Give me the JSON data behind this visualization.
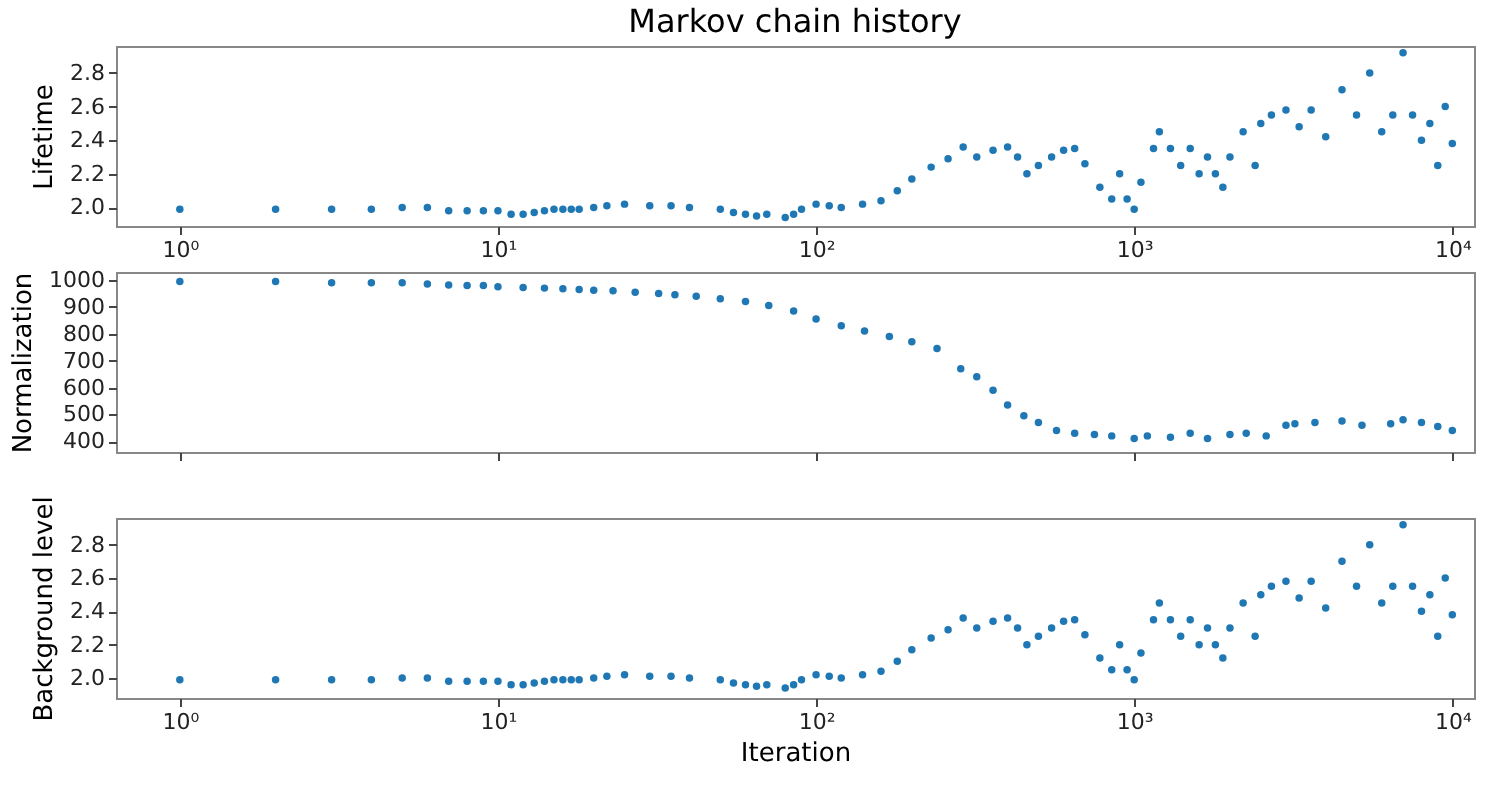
{
  "chart_data": [
    {
      "type": "scatter",
      "title": "Markov chain history",
      "ylabel": "Lifetime",
      "color": "#1f77b4",
      "marker": "circle",
      "grid": false,
      "log": "x",
      "xlim": [
        0.63,
        11700
      ],
      "xticks": [
        {
          "value": 1,
          "label": "10⁰"
        },
        {
          "value": 10,
          "label": "10¹"
        },
        {
          "value": 100,
          "label": "10²"
        },
        {
          "value": 1000,
          "label": "10³"
        },
        {
          "value": 10000,
          "label": "10⁴"
        }
      ],
      "ylim": [
        1.89,
        2.96
      ],
      "yticks": [
        {
          "value": 2,
          "label": "2.0"
        },
        2.2,
        2.4,
        2.6,
        2.8
      ],
      "x": [
        1,
        2,
        3,
        4,
        5,
        6,
        7,
        8,
        9,
        10,
        11,
        12,
        13,
        14,
        15,
        16,
        17,
        18,
        20,
        22,
        25,
        30,
        35,
        40,
        50,
        55,
        60,
        65,
        70,
        80,
        85,
        90,
        100,
        110,
        120,
        140,
        160,
        180,
        200,
        230,
        260,
        290,
        320,
        360,
        400,
        430,
        460,
        500,
        550,
        600,
        650,
        700,
        780,
        850,
        900,
        950,
        1000,
        1050,
        1150,
        1200,
        1300,
        1400,
        1500,
        1600,
        1700,
        1800,
        1900,
        2000,
        2200,
        2400,
        2500,
        2700,
        3000,
        3300,
        3600,
        4000,
        4500,
        5000,
        5500,
        6000,
        6500,
        7000,
        7500,
        8000,
        8500,
        9000,
        9500,
        10000
      ],
      "values": [
        1.99,
        1.99,
        1.99,
        1.99,
        2.0,
        2.0,
        1.98,
        1.98,
        1.98,
        1.98,
        1.96,
        1.96,
        1.97,
        1.98,
        1.99,
        1.99,
        1.99,
        1.99,
        2.0,
        2.01,
        2.02,
        2.01,
        2.01,
        2.0,
        1.99,
        1.97,
        1.96,
        1.95,
        1.96,
        1.94,
        1.96,
        1.99,
        2.02,
        2.01,
        2.0,
        2.02,
        2.04,
        2.1,
        2.17,
        2.24,
        2.29,
        2.36,
        2.3,
        2.34,
        2.36,
        2.3,
        2.2,
        2.25,
        2.3,
        2.34,
        2.35,
        2.26,
        2.12,
        2.05,
        2.2,
        2.05,
        1.99,
        2.15,
        2.35,
        2.45,
        2.35,
        2.25,
        2.35,
        2.2,
        2.3,
        2.2,
        2.12,
        2.3,
        2.45,
        2.25,
        2.5,
        2.55,
        2.58,
        2.48,
        2.58,
        2.42,
        2.7,
        2.55,
        2.8,
        2.45,
        2.55,
        2.92,
        2.55,
        2.4,
        2.5,
        2.25,
        2.6,
        2.38
      ]
    },
    {
      "type": "scatter",
      "ylabel": "Normalization",
      "color": "#1f77b4",
      "marker": "circle",
      "grid": false,
      "log": "x",
      "tick_labels": "y",
      "xlim": [
        0.63,
        11700
      ],
      "xticks": [
        1,
        10,
        100,
        1000,
        10000
      ],
      "ylim": [
        360,
        1030
      ],
      "yticks": [
        400,
        500,
        600,
        700,
        800,
        900,
        1000
      ],
      "x": [
        1,
        2,
        3,
        4,
        5,
        6,
        7,
        8,
        9,
        10,
        12,
        14,
        16,
        18,
        20,
        23,
        27,
        32,
        36,
        42,
        50,
        60,
        71,
        85,
        100,
        120,
        142,
        170,
        200,
        240,
        285,
        320,
        360,
        400,
        450,
        500,
        570,
        650,
        750,
        850,
        1000,
        1100,
        1300,
        1500,
        1700,
        2000,
        2250,
        2600,
        3000,
        3200,
        3700,
        4500,
        5200,
        6400,
        7000,
        8000,
        9000,
        10000
      ],
      "values": [
        995,
        995,
        990,
        990,
        990,
        985,
        982,
        980,
        980,
        975,
        972,
        970,
        968,
        965,
        962,
        960,
        955,
        950,
        945,
        940,
        930,
        920,
        905,
        885,
        855,
        830,
        810,
        790,
        770,
        745,
        670,
        640,
        590,
        535,
        495,
        470,
        440,
        430,
        425,
        420,
        410,
        420,
        415,
        430,
        410,
        425,
        430,
        420,
        460,
        465,
        470,
        475,
        460,
        465,
        480,
        470,
        455,
        440
      ]
    },
    {
      "type": "scatter",
      "ylabel": "Background level",
      "xlabel": "Iteration",
      "color": "#1f77b4",
      "marker": "circle",
      "grid": false,
      "log": "x",
      "xlim": [
        0.63,
        11700
      ],
      "xticks": [
        {
          "value": 1,
          "label": "10⁰"
        },
        {
          "value": 10,
          "label": "10¹"
        },
        {
          "value": 100,
          "label": "10²"
        },
        {
          "value": 1000,
          "label": "10³"
        },
        {
          "value": 10000,
          "label": "10⁴"
        }
      ],
      "ylim": [
        1.88,
        2.96
      ],
      "yticks": [
        {
          "value": 2,
          "label": "2.0"
        },
        2.2,
        2.4,
        2.6,
        2.8
      ],
      "x": [
        1,
        2,
        3,
        4,
        5,
        6,
        7,
        8,
        9,
        10,
        11,
        12,
        13,
        14,
        15,
        16,
        17,
        18,
        20,
        22,
        25,
        30,
        35,
        40,
        50,
        55,
        60,
        65,
        70,
        80,
        85,
        90,
        100,
        110,
        120,
        140,
        160,
        180,
        200,
        230,
        260,
        290,
        320,
        360,
        400,
        430,
        460,
        500,
        550,
        600,
        650,
        700,
        780,
        850,
        900,
        950,
        1000,
        1050,
        1150,
        1200,
        1300,
        1400,
        1500,
        1600,
        1700,
        1800,
        1900,
        2000,
        2200,
        2400,
        2500,
        2700,
        3000,
        3300,
        3600,
        4000,
        4500,
        5000,
        5500,
        6000,
        6500,
        7000,
        7500,
        8000,
        8500,
        9000,
        9500,
        10000
      ],
      "values": [
        1.99,
        1.99,
        1.99,
        1.99,
        2.0,
        2.0,
        1.98,
        1.98,
        1.98,
        1.98,
        1.96,
        1.96,
        1.97,
        1.98,
        1.99,
        1.99,
        1.99,
        1.99,
        2.0,
        2.01,
        2.02,
        2.01,
        2.01,
        2.0,
        1.99,
        1.97,
        1.96,
        1.95,
        1.96,
        1.94,
        1.96,
        1.99,
        2.02,
        2.01,
        2.0,
        2.02,
        2.04,
        2.1,
        2.17,
        2.24,
        2.29,
        2.36,
        2.3,
        2.34,
        2.36,
        2.3,
        2.2,
        2.25,
        2.3,
        2.34,
        2.35,
        2.26,
        2.12,
        2.05,
        2.2,
        2.05,
        1.99,
        2.15,
        2.35,
        2.45,
        2.35,
        2.25,
        2.35,
        2.2,
        2.3,
        2.2,
        2.12,
        2.3,
        2.45,
        2.25,
        2.5,
        2.55,
        2.58,
        2.48,
        2.58,
        2.42,
        2.7,
        2.55,
        2.8,
        2.45,
        2.55,
        2.92,
        2.55,
        2.4,
        2.5,
        2.25,
        2.6,
        2.38
      ]
    }
  ]
}
